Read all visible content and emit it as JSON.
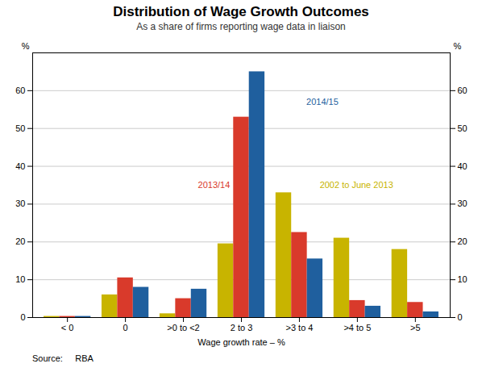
{
  "chart_data": {
    "type": "bar",
    "title": "Distribution of Wage Growth Outcomes",
    "subtitle": "As a share of firms reporting wage data in liaison",
    "xlabel": "Wage growth rate – %",
    "ylabel": "%",
    "y2label": "%",
    "source": "Source:     RBA",
    "categories": [
      "< 0",
      "0",
      ">0 to <2",
      "2 to 3",
      ">3 to 4",
      ">4 to 5",
      ">5"
    ],
    "series": [
      {
        "name": "2002 to June 2013",
        "color": "#c8b400",
        "values": [
          0.3,
          6,
          1,
          19.5,
          33,
          21,
          18
        ]
      },
      {
        "name": "2013/14",
        "color": "#d93a2b",
        "values": [
          0.3,
          10.5,
          5,
          53,
          22.5,
          4.5,
          4
        ]
      },
      {
        "name": "2014/15",
        "color": "#1f5f9e",
        "values": [
          0.3,
          8,
          7.5,
          65,
          15.5,
          3,
          1.5
        ]
      }
    ],
    "ylim": [
      0,
      70
    ],
    "yticks": [
      0,
      10,
      20,
      30,
      40,
      50,
      60
    ],
    "y2lim": [
      0,
      70
    ],
    "y2ticks": [
      0,
      10,
      20,
      30,
      40,
      50,
      60
    ],
    "grid": true,
    "annotations": [
      {
        "text": "2014/15",
        "x": 4.12,
        "y": 57,
        "color": "#1f5f9e"
      },
      {
        "text": "2013/14",
        "x": 2.25,
        "y": 35,
        "color": "#d93a2b"
      },
      {
        "text": "2002 to June 2013",
        "x": 4.35,
        "y": 35,
        "color": "#c8b400"
      }
    ]
  }
}
